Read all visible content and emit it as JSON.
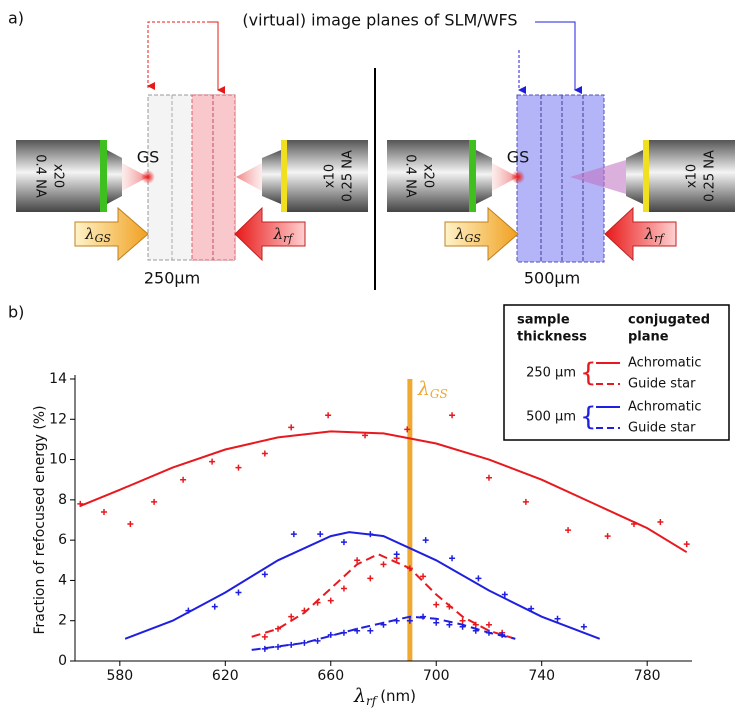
{
  "diagram": {
    "panel_a_label": "a)",
    "panel_b_label": "b)",
    "title": "(virtual) image planes of SLM/WFS",
    "left": {
      "gs": "GS",
      "objective_left": [
        "x20",
        "0.4 NA"
      ],
      "objective_right": [
        "x10",
        "0.25 NA"
      ],
      "arrow_left": {
        "symbol": "λ",
        "subscript": "GS"
      },
      "arrow_right": {
        "symbol": "λ",
        "subscript": "rf"
      },
      "thickness": "250µm"
    },
    "right": {
      "gs": "GS",
      "objective_left": [
        "x20",
        "0.4 NA"
      ],
      "objective_right": [
        "x10",
        "0.25 NA"
      ],
      "arrow_left": {
        "symbol": "λ",
        "subscript": "GS"
      },
      "arrow_right": {
        "symbol": "λ",
        "subscript": "rf"
      },
      "thickness": "500µm"
    }
  },
  "chart_data": {
    "type": "line",
    "x_label": {
      "symbol": "λ",
      "subscript": "rf",
      "unit": "(nm)"
    },
    "y_label": "Fraction of refocused energy (%)",
    "xlim": [
      563,
      797
    ],
    "xticks": [
      580,
      620,
      660,
      700,
      740,
      780
    ],
    "ylim": [
      0,
      14
    ],
    "yticks": [
      0,
      2,
      4,
      6,
      8,
      10,
      12,
      14
    ],
    "vline": {
      "x": 690,
      "color": "#f0a830",
      "label": {
        "symbol": "λ",
        "subscript": "GS"
      }
    },
    "legend_headers": [
      [
        "sample",
        "thickness"
      ],
      [
        "conjugated",
        "plane"
      ]
    ],
    "groups": [
      {
        "label": "250 µm",
        "color": "#e8191e",
        "series": [
          {
            "name": "Achromatic",
            "style": "solid",
            "fit": {
              "x": [
                565,
                580,
                600,
                620,
                640,
                660,
                680,
                700,
                720,
                740,
                760,
                780,
                795
              ],
              "values": [
                7.7,
                8.5,
                9.6,
                10.5,
                11.1,
                11.4,
                11.3,
                10.8,
                10.0,
                9.0,
                7.8,
                6.6,
                5.4
              ]
            },
            "points": {
              "x": [
                565,
                574,
                584,
                593,
                604,
                615,
                625,
                635,
                645,
                659,
                673,
                689,
                706,
                720,
                734,
                750,
                765,
                775,
                785,
                795
              ],
              "values": [
                7.8,
                7.4,
                6.8,
                7.9,
                9.0,
                9.9,
                9.6,
                10.3,
                11.6,
                12.2,
                11.2,
                11.5,
                12.2,
                9.1,
                7.9,
                6.5,
                6.2,
                6.8,
                6.9,
                5.8
              ]
            }
          },
          {
            "name": "Guide star",
            "style": "dashed",
            "fit": {
              "x": [
                630,
                640,
                650,
                660,
                670,
                678,
                690,
                700,
                710,
                720,
                730
              ],
              "values": [
                1.2,
                1.6,
                2.4,
                3.6,
                4.8,
                5.3,
                4.6,
                3.3,
                2.2,
                1.5,
                1.1
              ]
            },
            "points": {
              "x": [
                635,
                640,
                645,
                650,
                655,
                660,
                665,
                670,
                675,
                680,
                685,
                690,
                695,
                700,
                705,
                710,
                715,
                720,
                725
              ],
              "values": [
                1.2,
                1.6,
                2.2,
                2.5,
                2.9,
                3.0,
                3.6,
                5.0,
                4.1,
                4.8,
                5.1,
                4.6,
                4.2,
                2.8,
                2.7,
                2.0,
                1.8,
                1.8,
                1.4
              ]
            }
          }
        ]
      },
      {
        "label": "500 µm",
        "color": "#1f1fe0",
        "series": [
          {
            "name": "Achromatic",
            "style": "solid",
            "fit": {
              "x": [
                582,
                600,
                620,
                640,
                660,
                667,
                680,
                700,
                720,
                740,
                762
              ],
              "values": [
                1.1,
                2.0,
                3.4,
                5.0,
                6.2,
                6.4,
                6.2,
                5.0,
                3.5,
                2.2,
                1.1
              ]
            },
            "points": {
              "x": [
                606,
                616,
                625,
                635,
                646,
                656,
                665,
                675,
                685,
                696,
                706,
                716,
                726,
                736,
                746,
                756
              ],
              "values": [
                2.5,
                2.7,
                3.4,
                4.3,
                6.3,
                6.3,
                5.9,
                6.3,
                5.3,
                6.0,
                5.1,
                4.1,
                3.3,
                2.6,
                2.1,
                1.7
              ]
            }
          },
          {
            "name": "Guide star",
            "style": "dashed",
            "fit": {
              "x": [
                630,
                650,
                670,
                690,
                700,
                710,
                720,
                730
              ],
              "values": [
                0.55,
                0.9,
                1.6,
                2.2,
                2.1,
                1.8,
                1.4,
                1.1
              ]
            },
            "points": {
              "x": [
                635,
                640,
                645,
                650,
                655,
                660,
                665,
                670,
                675,
                680,
                685,
                690,
                695,
                700,
                705,
                710,
                715,
                720,
                725
              ],
              "values": [
                0.6,
                0.7,
                0.8,
                0.9,
                1.0,
                1.3,
                1.4,
                1.5,
                1.5,
                1.8,
                2.0,
                2.0,
                2.2,
                1.9,
                1.8,
                1.7,
                1.5,
                1.4,
                1.3
              ]
            }
          }
        ]
      }
    ]
  }
}
